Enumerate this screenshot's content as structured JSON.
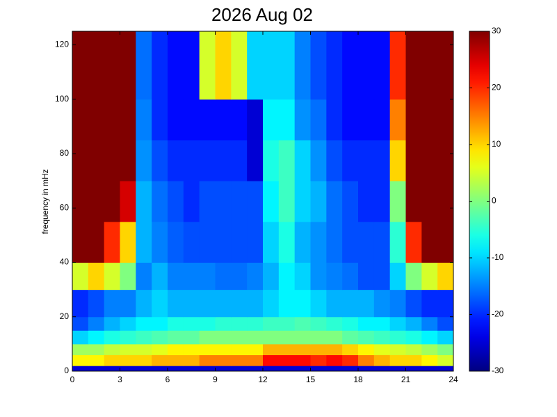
{
  "chart_data": {
    "type": "heatmap",
    "title": "2026 Aug 02",
    "ylabel": "frequency in mHz",
    "x": [
      0,
      1,
      2,
      3,
      4,
      5,
      6,
      7,
      8,
      9,
      10,
      11,
      12,
      13,
      14,
      15,
      16,
      17,
      18,
      19,
      20,
      21,
      22,
      23,
      24
    ],
    "y": [
      0,
      2,
      6,
      10,
      15,
      20,
      30,
      40,
      55,
      70,
      85,
      100,
      125
    ],
    "z": [
      [
        -25,
        -25,
        -25,
        -25,
        -25,
        -25,
        -25,
        -25,
        -25,
        -25,
        -25,
        -25,
        -25,
        -25,
        -25,
        -25,
        -25,
        -25,
        -25,
        -25,
        -25,
        -25,
        -25,
        -25
      ],
      [
        8,
        8,
        10,
        10,
        10,
        12,
        12,
        12,
        15,
        15,
        15,
        15,
        22,
        22,
        22,
        20,
        22,
        20,
        15,
        12,
        10,
        10,
        8,
        5
      ],
      [
        2,
        2,
        4,
        5,
        5,
        6,
        8,
        8,
        8,
        8,
        8,
        8,
        12,
        12,
        12,
        12,
        12,
        10,
        8,
        6,
        5,
        4,
        2,
        0
      ],
      [
        -10,
        -8,
        -6,
        -5,
        -4,
        -3,
        -2,
        -2,
        0,
        0,
        0,
        0,
        0,
        0,
        0,
        0,
        0,
        -2,
        -3,
        -4,
        -5,
        -6,
        -8,
        -10
      ],
      [
        -18,
        -15,
        -12,
        -10,
        -8,
        -8,
        -6,
        -6,
        -6,
        -5,
        -5,
        -5,
        -4,
        -4,
        -3,
        -4,
        -5,
        -6,
        -8,
        -8,
        -10,
        -12,
        -15,
        -18
      ],
      [
        -20,
        -18,
        -15,
        -15,
        -12,
        -10,
        -12,
        -12,
        -12,
        -12,
        -12,
        -12,
        -10,
        -8,
        -8,
        -10,
        -12,
        -12,
        -12,
        -14,
        -15,
        -18,
        -20,
        -20
      ],
      [
        5,
        10,
        5,
        0,
        -15,
        -12,
        -15,
        -15,
        -15,
        -16,
        -16,
        -15,
        -12,
        -8,
        -10,
        -14,
        -15,
        -16,
        -18,
        -18,
        -10,
        0,
        5,
        10
      ],
      [
        30,
        30,
        20,
        10,
        -12,
        -15,
        -17,
        -18,
        -18,
        -18,
        -18,
        -18,
        -10,
        -6,
        -12,
        -14,
        -16,
        -18,
        -18,
        -18,
        -5,
        20,
        30,
        30
      ],
      [
        30,
        30,
        30,
        25,
        -12,
        -16,
        -18,
        -20,
        -18,
        -18,
        -18,
        -18,
        -8,
        -4,
        -10,
        -12,
        -16,
        -18,
        -20,
        -20,
        0,
        30,
        30,
        30
      ],
      [
        30,
        30,
        30,
        30,
        -14,
        -18,
        -20,
        -20,
        -20,
        -20,
        -20,
        -25,
        -6,
        -4,
        -10,
        -14,
        -18,
        -20,
        -20,
        -20,
        10,
        30,
        30,
        30
      ],
      [
        30,
        30,
        30,
        30,
        -15,
        -20,
        -22,
        -22,
        -22,
        -22,
        -22,
        -25,
        -8,
        -8,
        -14,
        -16,
        -20,
        -22,
        -22,
        -22,
        15,
        30,
        30,
        30
      ],
      [
        30,
        30,
        30,
        30,
        -16,
        -20,
        -22,
        -22,
        5,
        10,
        5,
        -10,
        -10,
        -10,
        -15,
        -18,
        -20,
        -22,
        -22,
        -22,
        20,
        30,
        30,
        30
      ]
    ],
    "xlim": [
      0,
      24
    ],
    "xticks": [
      0,
      3,
      6,
      9,
      12,
      15,
      18,
      21,
      24
    ],
    "ylim": [
      0,
      125
    ],
    "yticks": [
      0,
      20,
      40,
      60,
      80,
      100,
      120
    ],
    "clim": [
      -30,
      30
    ],
    "cticks": [
      -30,
      -20,
      -10,
      0,
      10,
      20,
      30
    ],
    "colormap": "jet"
  }
}
